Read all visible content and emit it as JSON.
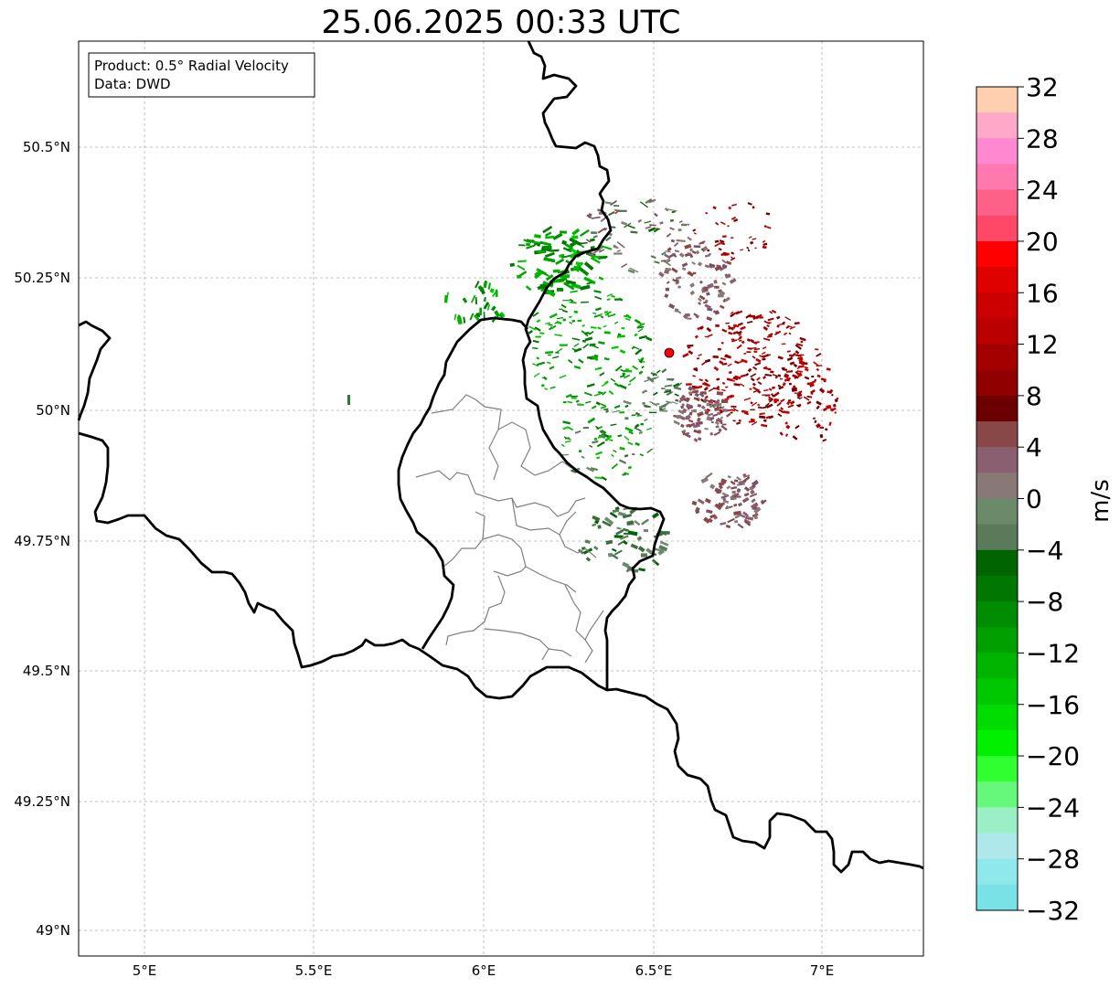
{
  "title": "25.06.2025 00:33 UTC",
  "info_box": {
    "product": "Product: 0.5° Radial Velocity",
    "data": "Data: DWD"
  },
  "map": {
    "lon_ticks": [
      "5°E",
      "5.5°E",
      "6°E",
      "6.5°E",
      "7°E"
    ],
    "lat_ticks": [
      "50.5°N",
      "50.25°N",
      "50°N",
      "49.75°N",
      "49.5°N",
      "49.25°N",
      "49°N"
    ],
    "radar_site_color": "#ff0000"
  },
  "colorbar": {
    "label": "m/s",
    "ticks": [
      "32",
      "28",
      "24",
      "20",
      "16",
      "12",
      "8",
      "4",
      "0",
      "−4",
      "−8",
      "−12",
      "−16",
      "−20",
      "−24",
      "−28",
      "−32"
    ],
    "colors_top_to_bottom": [
      "#ffcfaf",
      "#ffa8c8",
      "#ff88d0",
      "#ff78b0",
      "#ff6088",
      "#ff4868",
      "#ff0000",
      "#e00000",
      "#cc0000",
      "#bb0000",
      "#a40000",
      "#900000",
      "#6c0000",
      "#884848",
      "#8a6070",
      "#887878",
      "#6a8a6a",
      "#5a7a5a",
      "#006400",
      "#007800",
      "#008c00",
      "#00a000",
      "#00b400",
      "#00c800",
      "#00dc00",
      "#00f000",
      "#30ff30",
      "#66f87a",
      "#9af0c4",
      "#aee8ea",
      "#8ee8ec",
      "#78e2e6"
    ]
  }
}
